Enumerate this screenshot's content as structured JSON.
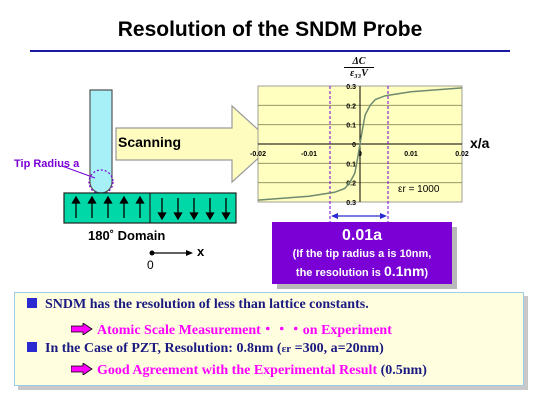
{
  "title": "Resolution of the SNDM Probe",
  "diagram": {
    "scanning_label": "Scanning",
    "tip_radius_label": "Tip Radius a",
    "domain_label": "180˚  Domain",
    "axis_origin": "0",
    "axis_x": "x",
    "colors": {
      "probe": "#a8f0f8",
      "domain": "#00d8a8",
      "arrow": "#fffcc0",
      "chart_bg": "#ffffc0",
      "accent": "#7a00d6",
      "bullet": "#2a2ad0",
      "magenta": "#ff00ff"
    }
  },
  "graph": {
    "ylabel_numerator": "ΔC",
    "ylabel_denominator": "ε₃₃V",
    "xlabel": "x/a",
    "x_ticks": [
      "-0.02",
      "-0.01",
      "0",
      "0.01",
      "0.02"
    ],
    "y_ticks": [
      "0.3",
      "0.2",
      "0.1",
      "0",
      "-0.1",
      "-0.2",
      "-0.3"
    ],
    "legend": "εr = 1000"
  },
  "chart_data": {
    "type": "line",
    "title": "",
    "xlabel": "x/a",
    "ylabel": "ΔC / ε33V",
    "xlim": [
      -0.02,
      0.02
    ],
    "ylim": [
      -0.3,
      0.3
    ],
    "grid": true,
    "series": [
      {
        "x": [
          -0.02,
          -0.01,
          -0.005,
          -0.003,
          -0.002,
          -0.001,
          -0.0005,
          0,
          0.0005,
          0.001,
          0.002,
          0.003,
          0.005,
          0.01,
          0.02
        ],
        "y": [
          -0.29,
          -0.27,
          -0.25,
          -0.23,
          -0.2,
          -0.15,
          -0.08,
          0,
          0.08,
          0.15,
          0.2,
          0.23,
          0.25,
          0.27,
          0.29
        ]
      }
    ]
  },
  "result": {
    "headline": "0.01a",
    "line1": "(If the tip radius a is 10nm,",
    "line2_prefix": "the resolution is ",
    "line2_value": "0.1nm",
    "line2_suffix": ")"
  },
  "summary": {
    "b1": "SNDM has the resolution of less than lattice constants.",
    "a1": "Atomic Scale Measurement・・・on Experiment",
    "b2_prefix": "In the Case of PZT,  Resolution: 0.8nm (",
    "b2_sym": "εr",
    "b2_suffix": " =300, a=20nm)",
    "a2_main": "Good Agreement with the Experimental Result",
    "a2_paren": " (0.5nm)"
  }
}
